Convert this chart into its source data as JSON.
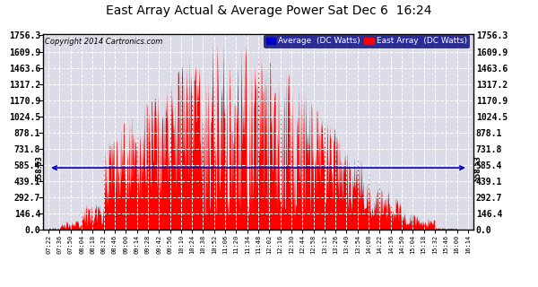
{
  "title": "East Array Actual & Average Power Sat Dec 6  16:24",
  "copyright": "Copyright 2014 Cartronics.com",
  "legend_avg": "Average  (DC Watts)",
  "legend_east": "East Array  (DC Watts)",
  "avg_value": 558.53,
  "yticks": [
    0.0,
    146.4,
    292.7,
    439.1,
    585.4,
    731.8,
    878.1,
    1024.5,
    1170.9,
    1317.2,
    1463.6,
    1609.9,
    1756.3
  ],
  "bg_color": "#ffffff",
  "plot_bg_color": "#dcdce8",
  "fill_color": "#ff0000",
  "avg_line_color": "#0000cc",
  "grid_color": "#ffffff",
  "xtick_labels": [
    "07:22",
    "07:36",
    "07:50",
    "08:04",
    "08:18",
    "08:32",
    "08:46",
    "09:00",
    "09:14",
    "09:28",
    "09:42",
    "09:56",
    "10:10",
    "10:24",
    "10:38",
    "10:52",
    "11:06",
    "11:20",
    "11:34",
    "11:48",
    "12:02",
    "12:16",
    "12:30",
    "12:44",
    "12:58",
    "13:12",
    "13:26",
    "13:40",
    "13:54",
    "14:08",
    "14:22",
    "14:36",
    "14:50",
    "15:04",
    "15:18",
    "15:32",
    "15:46",
    "16:00",
    "16:14"
  ],
  "ymax": 1756.3,
  "ymin": 0.0,
  "n_points": 39
}
